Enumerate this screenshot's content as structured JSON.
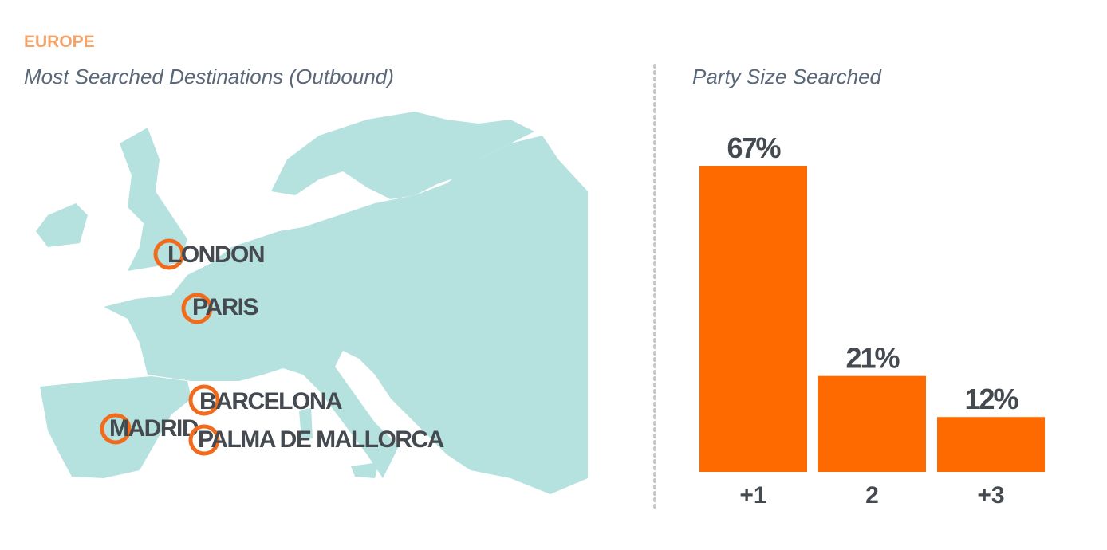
{
  "header": {
    "region": "EUROPE"
  },
  "map": {
    "title": "Most Searched Destinations (Outbound)",
    "cities": [
      "LONDON",
      "PARIS",
      "BARCELONA",
      "MADRID",
      "PALMA DE MALLORCA"
    ]
  },
  "chart_data": {
    "type": "bar",
    "title": "Party Size Searched",
    "categories": [
      "+1",
      "2",
      "+3"
    ],
    "values": [
      67,
      21,
      12
    ],
    "value_labels": [
      "67%",
      "21%",
      "12%"
    ],
    "color": "#ff6a00"
  }
}
